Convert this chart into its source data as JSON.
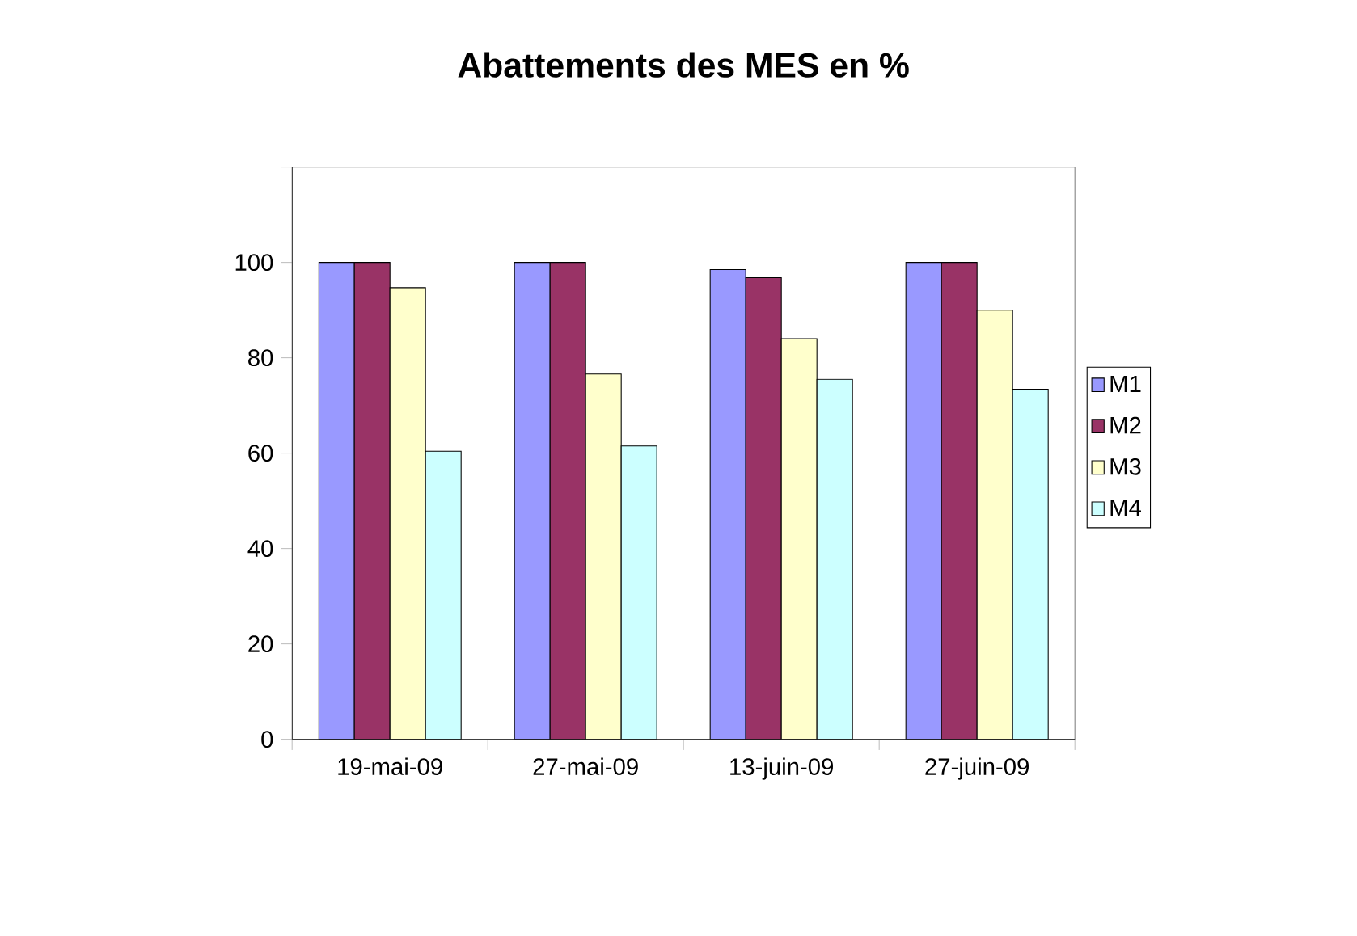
{
  "chart_data": {
    "type": "bar",
    "title": "Abattements des MES en %",
    "categories": [
      "19-mai-09",
      "27-mai-09",
      "13-juin-09",
      "27-juin-09"
    ],
    "series": [
      {
        "name": "M1",
        "color": "#9999ff",
        "values": [
          100,
          100,
          98.5,
          100
        ]
      },
      {
        "name": "M2",
        "color": "#993366",
        "values": [
          100,
          100,
          96.8,
          100
        ]
      },
      {
        "name": "M3",
        "color": "#ffffcc",
        "values": [
          94.7,
          76.6,
          84.0,
          90.0
        ]
      },
      {
        "name": "M4",
        "color": "#ccffff",
        "values": [
          60.4,
          61.5,
          75.5,
          73.4
        ]
      }
    ],
    "ylim": [
      0,
      120
    ],
    "yticks": [
      0,
      20,
      40,
      60,
      80,
      100,
      {
        "value": 120,
        "label": null
      }
    ],
    "grid": false,
    "legend": "right"
  }
}
